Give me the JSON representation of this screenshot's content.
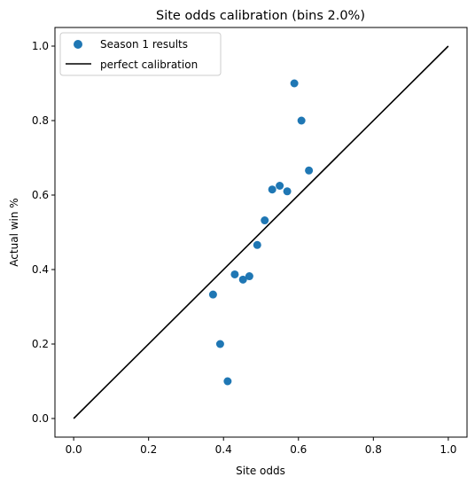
{
  "chart_data": {
    "type": "scatter",
    "title": "Site odds calibration (bins 2.0%)",
    "xlabel": "Site odds",
    "ylabel": "Actual win %",
    "xlim": [
      -0.05,
      1.05
    ],
    "ylim": [
      -0.05,
      1.05
    ],
    "xticks": [
      "0.0",
      "0.2",
      "0.4",
      "0.6",
      "0.8",
      "1.0"
    ],
    "yticks": [
      "0.0",
      "0.2",
      "0.4",
      "0.6",
      "0.8",
      "1.0"
    ],
    "grid": false,
    "legend_position": "top-left",
    "series": [
      {
        "name": "Season 1 results",
        "kind": "scatter",
        "color": "#1f77b4",
        "points": [
          {
            "x": 0.372,
            "y": 0.333
          },
          {
            "x": 0.391,
            "y": 0.2
          },
          {
            "x": 0.411,
            "y": 0.1
          },
          {
            "x": 0.43,
            "y": 0.387
          },
          {
            "x": 0.452,
            "y": 0.373
          },
          {
            "x": 0.469,
            "y": 0.382
          },
          {
            "x": 0.49,
            "y": 0.466
          },
          {
            "x": 0.51,
            "y": 0.532
          },
          {
            "x": 0.53,
            "y": 0.615
          },
          {
            "x": 0.55,
            "y": 0.625
          },
          {
            "x": 0.57,
            "y": 0.61
          },
          {
            "x": 0.589,
            "y": 0.9
          },
          {
            "x": 0.608,
            "y": 0.8
          },
          {
            "x": 0.628,
            "y": 0.666
          }
        ]
      },
      {
        "name": "perfect calibration",
        "kind": "line",
        "color": "#000000",
        "points": [
          {
            "x": 0.0,
            "y": 0.0
          },
          {
            "x": 1.0,
            "y": 1.0
          }
        ]
      }
    ]
  }
}
